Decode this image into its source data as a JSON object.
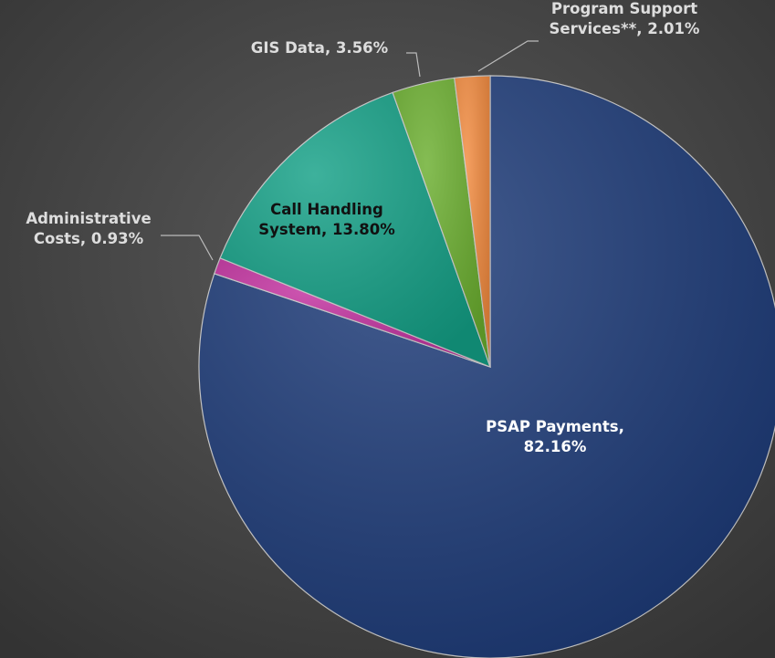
{
  "chart_data": {
    "type": "pie",
    "values": [
      82.16,
      0.93,
      13.8,
      3.56,
      2.01
    ],
    "value_labels": [
      [
        "PSAP Payments,",
        "82.16%"
      ],
      [
        "Administrative",
        "Costs, 0.93%"
      ],
      [
        "Call Handling",
        "System, 13.80%"
      ],
      [
        "GIS Data, 3.56%"
      ],
      [
        "Program Support",
        "Services**, 2.01%"
      ]
    ],
    "colors": [
      "#1c3a78",
      "#c2309f",
      "#13a086",
      "#6aae2e",
      "#f28a3e"
    ]
  }
}
